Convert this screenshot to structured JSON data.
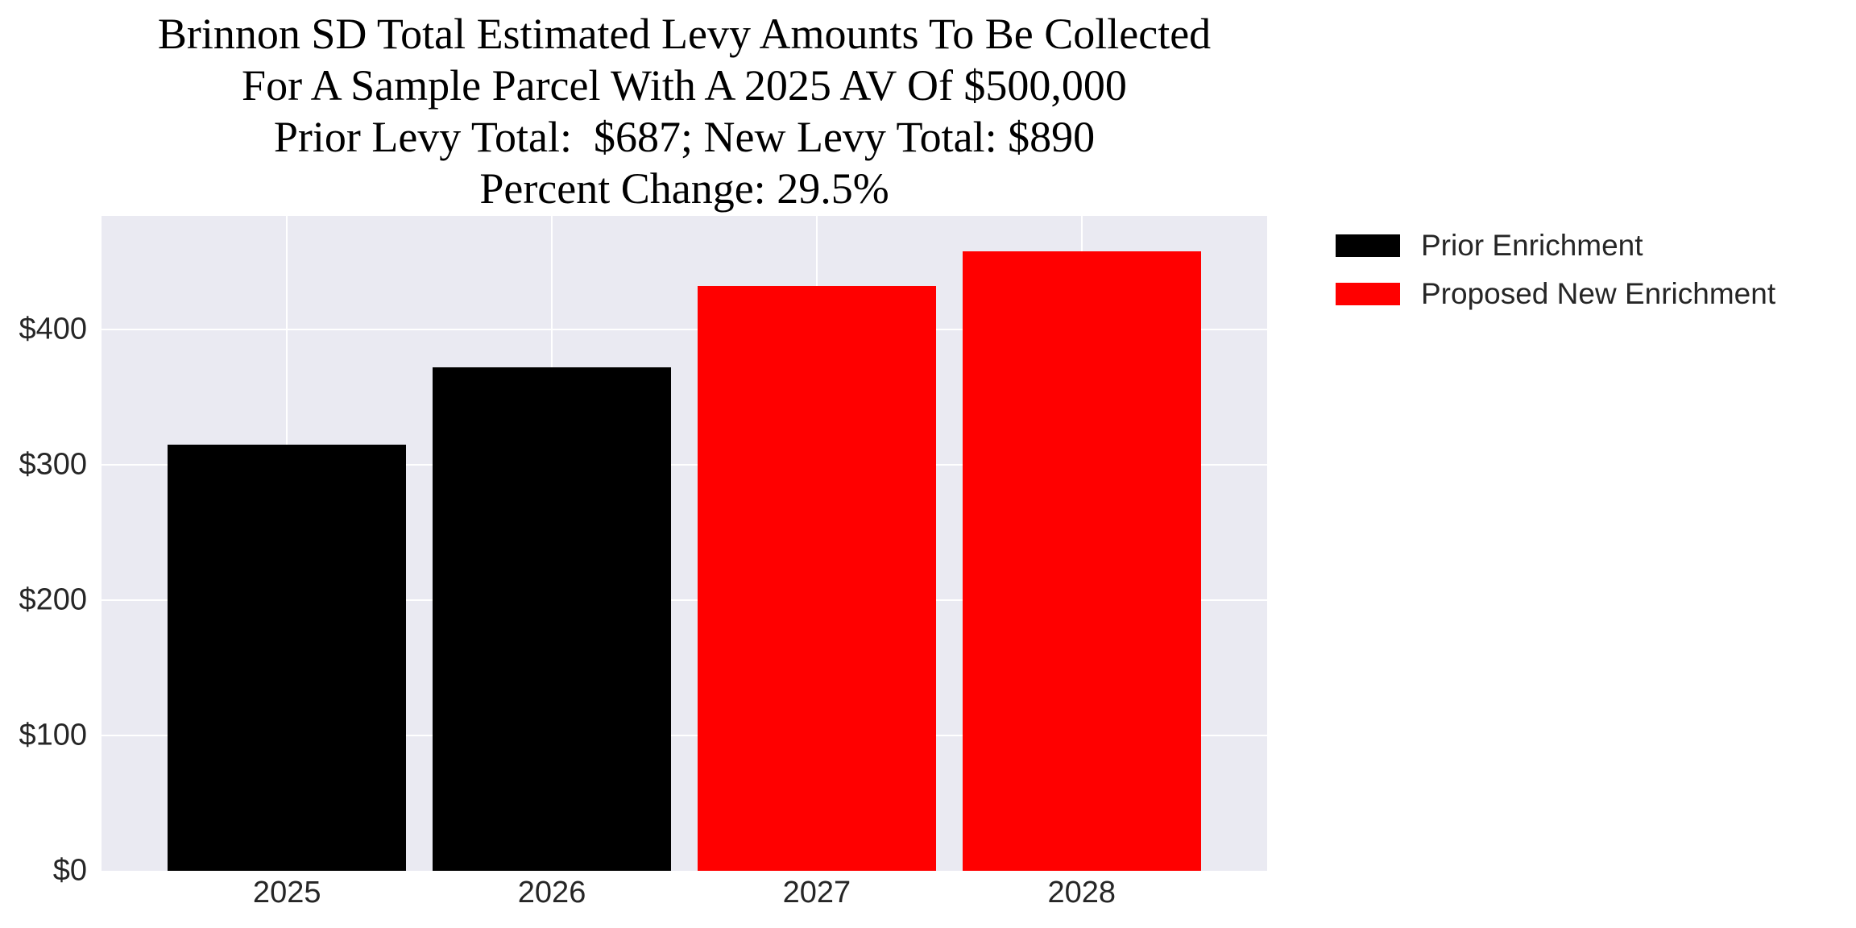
{
  "title": {
    "lines": [
      "Brinnon SD Total Estimated Levy Amounts To Be Collected",
      "For A Sample Parcel With A 2025 AV Of $500,000",
      "Prior Levy Total:  $687; New Levy Total: $890",
      "Percent Change: 29.5%"
    ]
  },
  "legend": {
    "items": [
      {
        "label": "Prior Enrichment",
        "color": "#000000"
      },
      {
        "label": "Proposed New Enrichment",
        "color": "#ff0000"
      }
    ]
  },
  "chart_data": {
    "type": "bar",
    "title": "Brinnon SD Total Estimated Levy Amounts To Be Collected\nFor A Sample Parcel With A 2025 AV Of $500,000\nPrior Levy Total:  $687; New Levy Total: $890\nPercent Change: 29.5%",
    "categories": [
      "2025",
      "2026",
      "2027",
      "2028"
    ],
    "values": [
      315,
      372,
      432,
      458
    ],
    "bar_colors": [
      "#000000",
      "#000000",
      "#ff0000",
      "#ff0000"
    ],
    "series": [
      {
        "name": "Prior Enrichment",
        "color": "#000000",
        "categories": [
          "2025",
          "2026"
        ],
        "values": [
          315,
          372
        ]
      },
      {
        "name": "Proposed New Enrichment",
        "color": "#ff0000",
        "categories": [
          "2027",
          "2028"
        ],
        "values": [
          432,
          458
        ]
      }
    ],
    "prior_levy_total": 687,
    "new_levy_total": 890,
    "percent_change": "29.5%",
    "xlabel": "",
    "ylabel": "",
    "ylim": [
      0,
      484
    ],
    "yticks": [
      0,
      100,
      200,
      300,
      400
    ],
    "ytick_labels": [
      "$0",
      "$100",
      "$200",
      "$300",
      "$400"
    ],
    "grid": true,
    "grid_color": "#ffffff",
    "plot_background": "#eaeaf2",
    "bar_width_fraction": 0.9,
    "legend_position": "outside upper right"
  }
}
